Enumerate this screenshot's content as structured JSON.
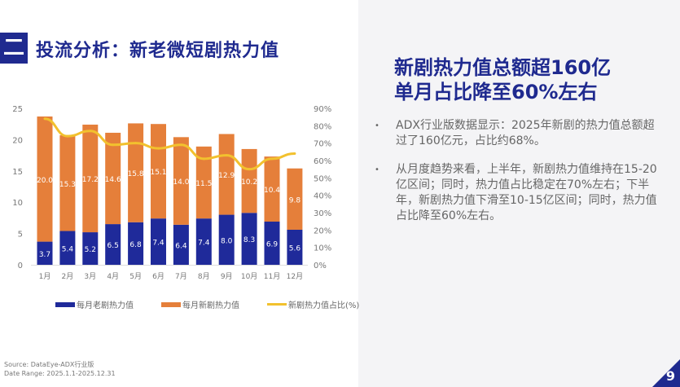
{
  "header": {
    "section_number": "二",
    "title": "投流分析：新老微短剧热力值"
  },
  "headline": {
    "line1": "新剧热力值总额超160亿",
    "line2": "单月占比降至60%左右"
  },
  "bullets": [
    {
      "icon": "bullet-dot",
      "text": "ADX行业版数据显示：2025年新剧的热力值总额超过了160亿元，占比约68%。"
    },
    {
      "icon": "bullet-dot",
      "text": "从月度趋势来看，上半年，新剧热力值维持在15-20亿区间；同时，热力值占比稳定在70%左右；下半年，新剧热力值下滑至10-15亿区间；同时，热力值占比降至60%左右。"
    }
  ],
  "source": {
    "line1": "Source:  DataEye-ADX行业版",
    "line2": "Date Range:  2025.1.1-2025.12.31"
  },
  "page_number": "9",
  "colors": {
    "old": "#1f2a9a",
    "new": "#e57f3a",
    "ratio": "#f2c12e",
    "brand": "#1f2a8f"
  },
  "chart_data": {
    "type": "bar",
    "stacked": true,
    "categories": [
      "1月",
      "2月",
      "3月",
      "4月",
      "5月",
      "6月",
      "7月",
      "8月",
      "9月",
      "10月",
      "11月",
      "12月"
    ],
    "series": [
      {
        "name": "每月老剧热力值",
        "type": "bar",
        "values": [
          3.7,
          5.4,
          5.2,
          6.5,
          6.8,
          7.4,
          6.4,
          7.4,
          8.0,
          8.3,
          6.9,
          5.6
        ]
      },
      {
        "name": "每月新剧热力值",
        "type": "bar",
        "values": [
          20.0,
          15.3,
          17.2,
          14.6,
          15.8,
          15.1,
          14.0,
          11.5,
          12.9,
          10.2,
          10.4,
          9.8
        ]
      },
      {
        "name": "新剧热力值占比(%)",
        "type": "line",
        "axis": "right",
        "values": [
          84,
          74,
          77,
          69,
          70,
          67,
          69,
          61,
          63,
          55,
          61,
          64
        ]
      }
    ],
    "ylim": [
      0,
      25
    ],
    "yticks": [
      0,
      5,
      10,
      15,
      20,
      25
    ],
    "y2lim": [
      0,
      90
    ],
    "y2ticks": [
      "0%",
      "10%",
      "20%",
      "30%",
      "40%",
      "50%",
      "60%",
      "70%",
      "80%",
      "90%"
    ],
    "grid": false,
    "legend": "bottom"
  }
}
